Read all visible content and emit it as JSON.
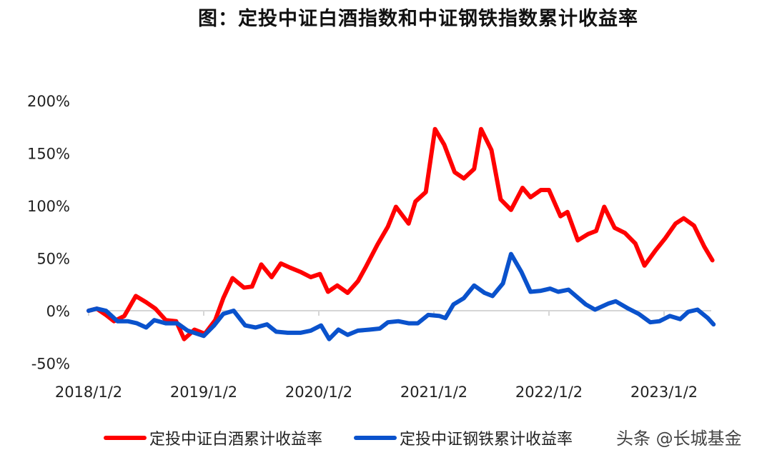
{
  "title": "图：定投中证白酒指数和中证钢铁指数累计收益率",
  "legend": {
    "items": [
      {
        "label": "定投中证白酒累计收益率",
        "color": "#ff0000"
      },
      {
        "label": "定投中证钢铁累计收益率",
        "color": "#0a52cc"
      }
    ]
  },
  "watermark": "头条 @长城基金",
  "axis": {
    "y_ticks": [
      "200%",
      "150%",
      "100%",
      "50%",
      "0%",
      "-50%"
    ],
    "x_ticks": [
      "2018/1/2",
      "2019/1/2",
      "2020/1/2",
      "2021/1/2",
      "2022/1/2",
      "2023/1/2"
    ]
  },
  "chart_data": {
    "type": "line",
    "title": "图：定投中证白酒指数和中证钢铁指数累计收益率",
    "xlabel": "",
    "ylabel": "",
    "ylim": [
      -50,
      200
    ],
    "y_ticks": [
      -50,
      0,
      50,
      100,
      150,
      200
    ],
    "x_tick_labels": [
      "2018/1/2",
      "2019/1/2",
      "2020/1/2",
      "2021/1/2",
      "2022/1/2",
      "2023/1/2"
    ],
    "x_range_years": [
      2018.0,
      2023.45
    ],
    "grid": false,
    "legend_position": "bottom",
    "series": [
      {
        "name": "定投中证白酒累计收益率",
        "color": "#ff0000",
        "x": [
          2018.0,
          2018.07,
          2018.15,
          2018.22,
          2018.31,
          2018.41,
          2018.5,
          2018.58,
          2018.67,
          2018.76,
          2018.83,
          2018.92,
          2019.01,
          2019.1,
          2019.17,
          2019.25,
          2019.35,
          2019.42,
          2019.5,
          2019.59,
          2019.67,
          2019.75,
          2019.84,
          2019.93,
          2020.01,
          2020.08,
          2020.16,
          2020.25,
          2020.34,
          2020.41,
          2020.51,
          2020.6,
          2020.67,
          2020.78,
          2020.84,
          2020.93,
          2021.01,
          2021.09,
          2021.18,
          2021.26,
          2021.35,
          2021.41,
          2021.5,
          2021.58,
          2021.67,
          2021.77,
          2021.84,
          2021.93,
          2022.0,
          2022.1,
          2022.16,
          2022.25,
          2022.34,
          2022.41,
          2022.48,
          2022.57,
          2022.66,
          2022.75,
          2022.83,
          2022.93,
          2023.01,
          2023.1,
          2023.17,
          2023.26,
          2023.35,
          2023.42
        ],
        "values": [
          0,
          2,
          -4,
          -10,
          -5,
          14,
          8,
          2,
          -9,
          -10,
          -27,
          -18,
          -22,
          -9,
          12,
          31,
          22,
          23,
          44,
          32,
          45,
          41,
          37,
          32,
          35,
          18,
          24,
          17,
          28,
          42,
          63,
          80,
          99,
          83,
          104,
          113,
          173,
          158,
          132,
          126,
          135,
          173,
          153,
          106,
          96,
          117,
          108,
          115,
          115,
          90,
          94,
          67,
          73,
          76,
          99,
          79,
          74,
          64,
          43,
          58,
          69,
          83,
          88,
          81,
          61,
          48
        ]
      },
      {
        "name": "定投中证钢铁累计收益率",
        "color": "#0a52cc",
        "x": [
          2018.0,
          2018.07,
          2018.15,
          2018.25,
          2018.34,
          2018.42,
          2018.5,
          2018.57,
          2018.67,
          2018.77,
          2018.86,
          2019.0,
          2019.09,
          2019.17,
          2019.26,
          2019.36,
          2019.45,
          2019.55,
          2019.63,
          2019.73,
          2019.84,
          2019.93,
          2020.02,
          2020.09,
          2020.17,
          2020.25,
          2020.34,
          2020.44,
          2020.53,
          2020.6,
          2020.69,
          2020.78,
          2020.86,
          2020.95,
          2021.05,
          2021.1,
          2021.17,
          2021.26,
          2021.35,
          2021.44,
          2021.51,
          2021.6,
          2021.67,
          2021.76,
          2021.84,
          2021.93,
          2022.01,
          2022.08,
          2022.17,
          2022.32,
          2022.4,
          2022.52,
          2022.58,
          2022.69,
          2022.78,
          2022.88,
          2022.96,
          2023.05,
          2023.14,
          2023.21,
          2023.29,
          2023.38,
          2023.43
        ],
        "values": [
          0,
          2,
          0,
          -10,
          -10,
          -12,
          -16,
          -9,
          -12,
          -12,
          -19,
          -24,
          -14,
          -3,
          0,
          -14,
          -16,
          -13,
          -20,
          -21,
          -21,
          -19,
          -14,
          -27,
          -18,
          -23,
          -19,
          -18,
          -17,
          -11,
          -10,
          -12,
          -12,
          -4,
          -5,
          -7,
          6,
          12,
          24,
          17,
          14,
          26,
          54,
          37,
          18,
          19,
          21,
          18,
          20,
          6,
          1,
          7,
          9,
          2,
          -3,
          -11,
          -10,
          -5,
          -8,
          -1,
          1,
          -7,
          -13
        ]
      }
    ]
  }
}
